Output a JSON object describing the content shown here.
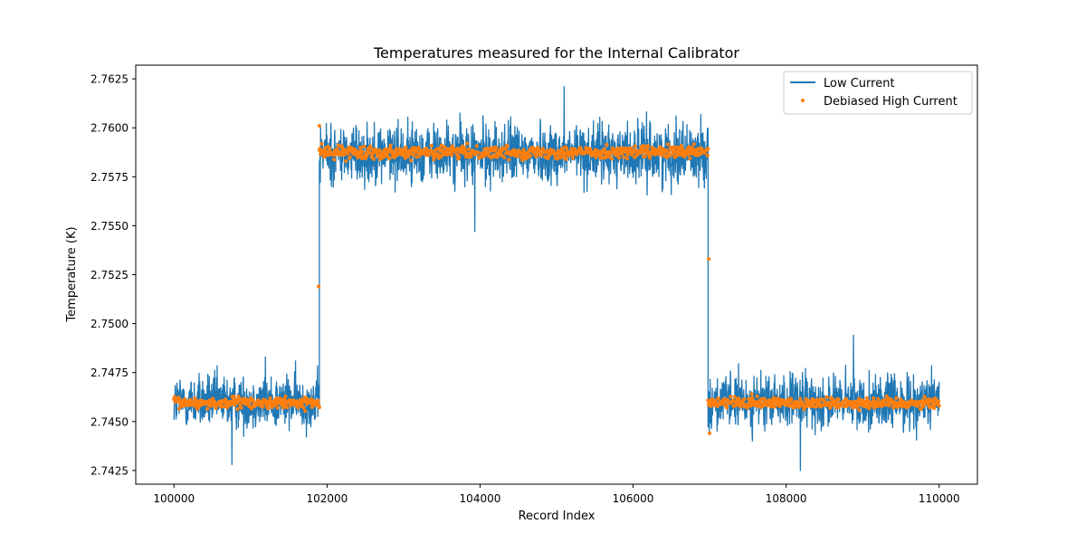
{
  "chart_data": {
    "type": "line",
    "title": "Temperatures measured for the Internal Calibrator",
    "xlabel": "Record Index",
    "ylabel": "Temperature (K)",
    "xlim": [
      99500,
      110500
    ],
    "ylim": [
      2.7418,
      2.7632
    ],
    "xticks": [
      {
        "value": 100000,
        "label": "100000"
      },
      {
        "value": 102000,
        "label": "102000"
      },
      {
        "value": 104000,
        "label": "104000"
      },
      {
        "value": 106000,
        "label": "106000"
      },
      {
        "value": 108000,
        "label": "108000"
      },
      {
        "value": 110000,
        "label": "110000"
      }
    ],
    "yticks": [
      {
        "value": 2.7425,
        "label": "2.7425"
      },
      {
        "value": 2.745,
        "label": "2.7450"
      },
      {
        "value": 2.7475,
        "label": "2.7475"
      },
      {
        "value": 2.75,
        "label": "2.7500"
      },
      {
        "value": 2.7525,
        "label": "2.7525"
      },
      {
        "value": 2.755,
        "label": "2.7550"
      },
      {
        "value": 2.7575,
        "label": "2.7575"
      },
      {
        "value": 2.76,
        "label": "2.7600"
      },
      {
        "value": 2.7625,
        "label": "2.7625"
      }
    ],
    "grid": false,
    "legend": "top-right",
    "series": [
      {
        "name": "Low Current",
        "kind": "line",
        "color": "#1f77b4",
        "segments": [
          {
            "x_start": 100000,
            "x_end": 101900,
            "mean": 2.746,
            "noise": 0.0009,
            "min": 2.7428,
            "max": 2.7483
          },
          {
            "x_start": 101900,
            "x_end": 106980,
            "mean": 2.7587,
            "noise": 0.001,
            "min": 2.7547,
            "max": 2.7621
          },
          {
            "x_start": 106980,
            "x_end": 110000,
            "mean": 2.746,
            "noise": 0.0009,
            "min": 2.7425,
            "max": 2.7494
          }
        ]
      },
      {
        "name": "Debiased High Current",
        "kind": "scatter",
        "color": "#ff7f0e",
        "segments": [
          {
            "x_start": 100000,
            "x_end": 101900,
            "mean": 2.74595,
            "noise": 0.0002
          },
          {
            "x_start": 101900,
            "x_end": 106980,
            "mean": 2.75875,
            "noise": 0.00022
          },
          {
            "x_start": 106980,
            "x_end": 110000,
            "mean": 2.74595,
            "noise": 0.0002
          }
        ],
        "outliers": [
          {
            "x": 101890,
            "y": 2.7519
          },
          {
            "x": 101900,
            "y": 2.7601
          },
          {
            "x": 106990,
            "y": 2.7533
          },
          {
            "x": 107000,
            "y": 2.7444
          },
          {
            "x": 107550,
            "y": 2.7464
          }
        ]
      }
    ]
  }
}
